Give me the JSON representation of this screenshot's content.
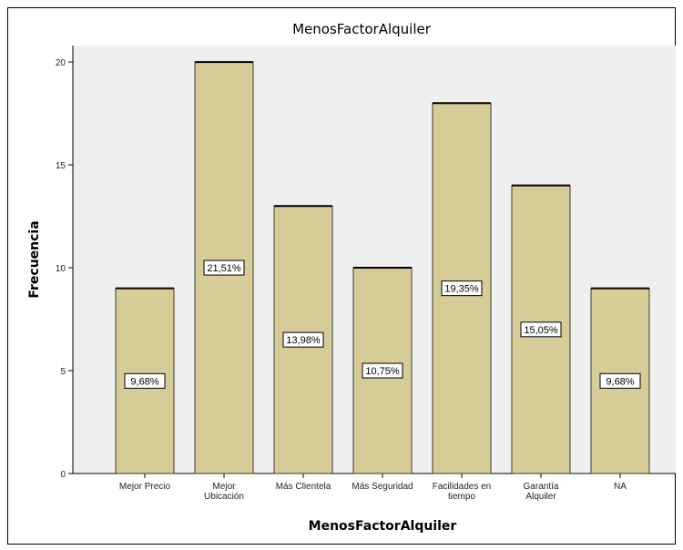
{
  "chart_data": {
    "type": "bar",
    "title": "MenosFactorAlquiler",
    "xlabel": "MenosFactorAlquiler",
    "ylabel": "Frecuencia",
    "categories": [
      [
        "Mejor Precio"
      ],
      [
        "Mejor",
        "Ubicación"
      ],
      [
        "Más Clientela"
      ],
      [
        "Más Seguridad"
      ],
      [
        "Facilidades en",
        "tiempo"
      ],
      [
        "Garantía",
        "Alquiler"
      ],
      [
        "NA"
      ]
    ],
    "values": [
      9,
      20,
      13,
      10,
      18,
      14,
      9
    ],
    "data_labels": [
      "9,68%",
      "21,51%",
      "13,98%",
      "10,75%",
      "19,35%",
      "15,05%",
      "9,68%"
    ],
    "yticks": [
      0,
      5,
      10,
      15,
      20
    ],
    "ylim": [
      0,
      20.8
    ],
    "grid": false,
    "colors": {
      "bar_fill": "#d5cc97",
      "bar_stroke": "#3a3a2a",
      "plot_background": "#efefef"
    }
  }
}
